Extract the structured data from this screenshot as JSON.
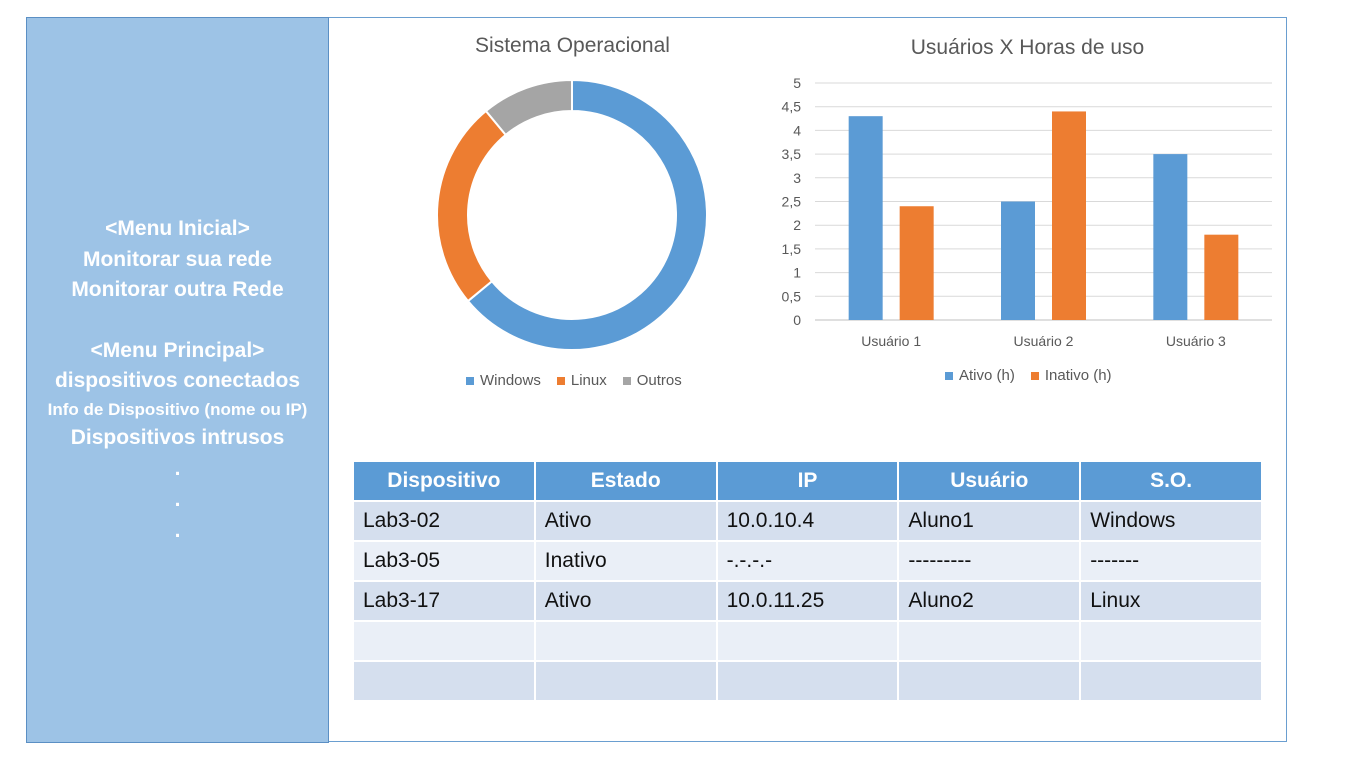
{
  "sidebar": {
    "menu_inicial_header": "<Menu Inicial>",
    "monitor_own": "Monitorar sua rede",
    "monitor_other": "Monitorar outra Rede",
    "menu_principal_header": "<Menu Principal>",
    "connected_devices": "dispositivos conectados",
    "device_info": "Info de Dispositivo (nome ou IP)",
    "intruders": "Dispositivos intrusos",
    "ellipsis_dot": "."
  },
  "donut": {
    "title": "Sistema Operacional",
    "legend": [
      {
        "label": "Windows",
        "color": "#5b9bd5"
      },
      {
        "label": "Linux",
        "color": "#ed7d31"
      },
      {
        "label": "Outros",
        "color": "#a5a5a5"
      }
    ]
  },
  "bar_chart": {
    "title": "Usuários X Horas de uso",
    "y_ticks": [
      "0",
      "0,5",
      "1",
      "1,5",
      "2",
      "2,5",
      "3",
      "3,5",
      "4",
      "4,5",
      "5"
    ],
    "legend": [
      {
        "label": "Ativo (h)",
        "color": "#5b9bd5"
      },
      {
        "label": "Inativo (h)",
        "color": "#ed7d31"
      }
    ]
  },
  "chart_data": [
    {
      "type": "pie",
      "title": "Sistema Operacional",
      "categories": [
        "Windows",
        "Linux",
        "Outros"
      ],
      "values": [
        64,
        25,
        11
      ],
      "colors": [
        "#5b9bd5",
        "#ed7d31",
        "#a5a5a5"
      ],
      "legend_position": "bottom"
    },
    {
      "type": "bar",
      "title": "Usuários X Horas de uso",
      "categories": [
        "Usuário 1",
        "Usuário 2",
        "Usuário 3"
      ],
      "series": [
        {
          "name": "Ativo (h)",
          "values": [
            4.3,
            2.5,
            3.5
          ],
          "color": "#5b9bd5"
        },
        {
          "name": "Inativo (h)",
          "values": [
            2.4,
            4.4,
            1.8
          ],
          "color": "#ed7d31"
        }
      ],
      "ylim": [
        0,
        5
      ],
      "grid": true,
      "legend_position": "bottom"
    }
  ],
  "table": {
    "headers": [
      "Dispositivo",
      "Estado",
      "IP",
      "Usuário",
      "S.O."
    ],
    "rows": [
      [
        "Lab3-02",
        "Ativo",
        "10.0.10.4",
        "Aluno1",
        "Windows"
      ],
      [
        "Lab3-05",
        "Inativo",
        "-.-.-.-",
        "---------",
        "-------"
      ],
      [
        "Lab3-17",
        "Ativo",
        "10.0.11.25",
        "Aluno2",
        "Linux"
      ],
      [
        "",
        "",
        "",
        "",
        ""
      ],
      [
        "",
        "",
        "",
        "",
        ""
      ]
    ]
  }
}
